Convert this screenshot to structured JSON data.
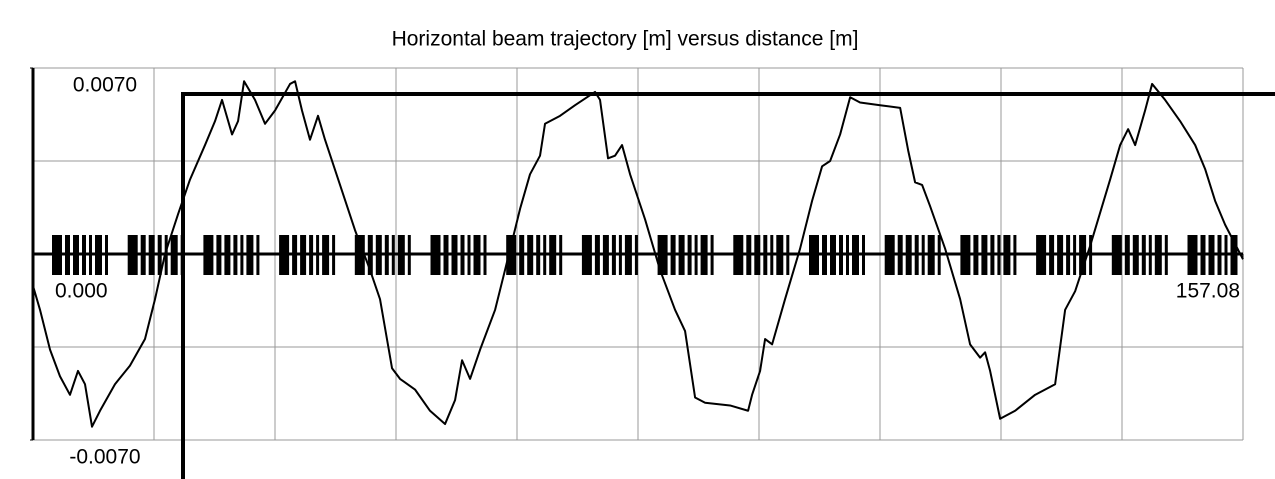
{
  "chart_data": {
    "type": "line",
    "title": "Horizontal beam trajectory [m] versus distance [m]",
    "x": [
      0,
      0.91,
      2.21,
      3.5,
      4.8,
      5.84,
      6.75,
      7.66,
      8.7,
      10.64,
      12.59,
      14.54,
      15.84,
      17.14,
      18.83,
      20.38,
      22.33,
      23.63,
      24.54,
      25.84,
      26.62,
      27.4,
      28.82,
      30.12,
      31.42,
      33.37,
      34.02,
      34.92,
      35.96,
      37.0,
      37.91,
      39.86,
      41.8,
      43.75,
      45.05,
      46.61,
      47.65,
      49.59,
      51.54,
      53.49,
      54.79,
      55.7,
      56.74,
      58.04,
      59.99,
      61.28,
      63.23,
      64.52,
      65.82,
      66.47,
      68.42,
      70.37,
      72.96,
      73.61,
      74.65,
      75.56,
      76.47,
      77.51,
      79.46,
      81.4,
      83.35,
      84.65,
      85.95,
      87.25,
      90.49,
      92.83,
      93.35,
      94.39,
      95.04,
      95.95,
      97.63,
      99.58,
      101.14,
      102.44,
      103.48,
      104.78,
      106.08,
      107.37,
      109.97,
      112.57,
      113.61,
      114.51,
      115.42,
      116.46,
      118.41,
      120.36,
      121.65,
      122.95,
      123.6,
      124.25,
      125.55,
      127.5,
      130.09,
      132.69,
      133.99,
      135.29,
      137.23,
      139.83,
      141.13,
      142.17,
      143.08,
      144.37,
      145.28,
      146.97,
      148.92,
      150.87,
      152.16,
      153.46,
      154.76,
      157.08
    ],
    "series": [
      {
        "color": "#000000",
        "values": [
          -0.0012,
          -0.0021,
          -0.0036,
          -0.0046,
          -0.0053,
          -0.0044,
          -0.0049,
          -0.0065,
          -0.0059,
          -0.0049,
          -0.0042,
          -0.0032,
          -0.0017,
          0.0,
          0.0015,
          0.0028,
          0.0041,
          0.005,
          0.0058,
          0.0045,
          0.005,
          0.0065,
          0.0058,
          0.0049,
          0.0054,
          0.0064,
          0.0065,
          0.0054,
          0.0043,
          0.0052,
          0.0043,
          0.0026,
          0.0009,
          -0.0006,
          -0.0017,
          -0.0043,
          -0.0047,
          -0.0051,
          -0.0059,
          -0.0064,
          -0.0055,
          -0.004,
          -0.0047,
          -0.0036,
          -0.0021,
          -0.0006,
          0.0017,
          0.003,
          0.0037,
          0.0049,
          0.0052,
          0.0056,
          0.0061,
          0.0058,
          0.0036,
          0.0037,
          0.0041,
          0.003,
          0.0013,
          -0.0006,
          -0.0021,
          -0.0029,
          -0.0054,
          -0.0056,
          -0.0057,
          -0.0059,
          -0.0053,
          -0.0044,
          -0.0032,
          -0.0034,
          -0.0017,
          0.0002,
          0.002,
          0.0033,
          0.0035,
          0.0045,
          0.0059,
          0.0057,
          0.0056,
          0.0055,
          0.0039,
          0.0027,
          0.0026,
          0.0018,
          0.0002,
          -0.0017,
          -0.0034,
          -0.0039,
          -0.0037,
          -0.0044,
          -0.0062,
          -0.0059,
          -0.0053,
          -0.0049,
          -0.0021,
          -0.0014,
          0.0003,
          0.0028,
          0.0041,
          0.0047,
          0.0041,
          0.0054,
          0.0064,
          0.0058,
          0.005,
          0.0041,
          0.0032,
          0.002,
          0.0011,
          -0.0002
        ]
      }
    ],
    "xlim": [
      0,
      157.08
    ],
    "xticks": [
      {
        "value": 0,
        "label": "0.000"
      },
      157.08
    ],
    "ylim": [
      -0.007,
      0.007
    ],
    "yticks": [
      {
        "value": -0.007,
        "label": "-0.0070"
      },
      {
        "value": 0.007,
        "label": "0.0070"
      }
    ],
    "grid": true
  }
}
